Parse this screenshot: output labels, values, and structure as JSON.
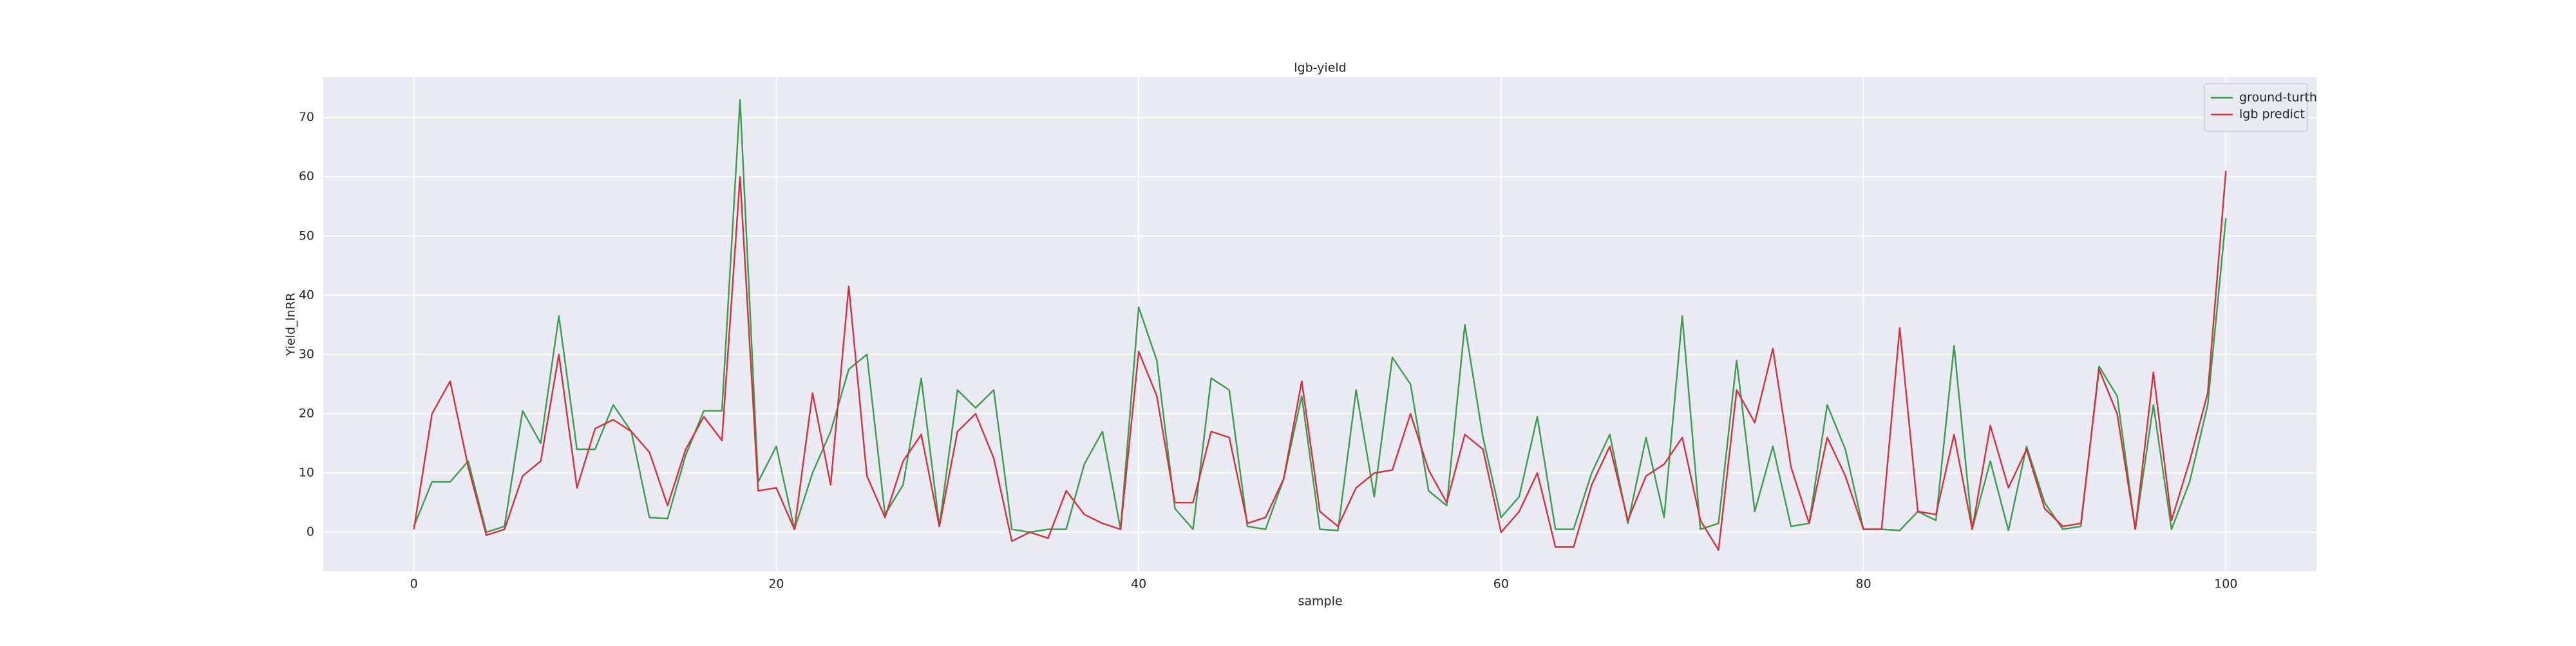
{
  "chart_data": {
    "type": "line",
    "title": "lgb-yield",
    "x_label": "sample",
    "y_label": "Yield_lnRR",
    "x": [
      0,
      1,
      2,
      3,
      4,
      5,
      6,
      7,
      8,
      9,
      10,
      11,
      12,
      13,
      14,
      15,
      16,
      17,
      18,
      19,
      20,
      21,
      22,
      23,
      24,
      25,
      26,
      27,
      28,
      29,
      30,
      31,
      32,
      33,
      34,
      35,
      36,
      37,
      38,
      39,
      40,
      41,
      42,
      43,
      44,
      45,
      46,
      47,
      48,
      49,
      50,
      51,
      52,
      53,
      54,
      55,
      56,
      57,
      58,
      59,
      60,
      61,
      62,
      63,
      64,
      65,
      66,
      67,
      68,
      69,
      70,
      71,
      72,
      73,
      74,
      75,
      76,
      77,
      78,
      79,
      80,
      81,
      82,
      83,
      84,
      85,
      86,
      87,
      88,
      89,
      90,
      91,
      92,
      93,
      94,
      95,
      96,
      97,
      98,
      99,
      100
    ],
    "series": [
      {
        "name": "ground-turth",
        "color": "#3b9b4f",
        "values": [
          1,
          8.5,
          8.5,
          12,
          0,
          1,
          20.5,
          15,
          36.5,
          14,
          14,
          21.5,
          17,
          2.5,
          2.3,
          13,
          20.5,
          20.5,
          73,
          8.5,
          14.5,
          0.5,
          10,
          17,
          27.5,
          30,
          3,
          8,
          26,
          1,
          24,
          21,
          24,
          0.5,
          0,
          0.5,
          0.5,
          11.5,
          17,
          0.5,
          38,
          29,
          4,
          0.5,
          26,
          24,
          1,
          0.5,
          9,
          23,
          0.5,
          0.3,
          24,
          6,
          29.5,
          25,
          7,
          4.5,
          35,
          16,
          2.5,
          6,
          19.5,
          0.5,
          0.5,
          10,
          16.5,
          1.5,
          16,
          2.5,
          36.5,
          0.5,
          1.5,
          29,
          3.5,
          14.5,
          1,
          1.5,
          21.5,
          14,
          0.5,
          0.5,
          0.3,
          3.5,
          2,
          31.5,
          0.5,
          12,
          0.3,
          14.5,
          5,
          0.5,
          1,
          28,
          23,
          0.5,
          21.5,
          0.5,
          8.5,
          21.5,
          53
        ]
      },
      {
        "name": "lgb predict",
        "color": "#d1323f",
        "values": [
          0.5,
          20,
          25.5,
          11,
          -0.5,
          0.5,
          9.5,
          12,
          30,
          7.5,
          17.5,
          19,
          17,
          13.5,
          4.5,
          14,
          19.5,
          15.5,
          60,
          7,
          7.5,
          0.5,
          23.5,
          8,
          41.5,
          9.5,
          2.5,
          12,
          16.5,
          1,
          17,
          20,
          12.5,
          -1.5,
          0,
          -1,
          7,
          3,
          1.5,
          0.5,
          30.5,
          23,
          5,
          5,
          17,
          16,
          1.5,
          2.5,
          9,
          25.5,
          3.5,
          1,
          7.5,
          10,
          10.5,
          20,
          10.5,
          5,
          16.5,
          14,
          0,
          3.5,
          10,
          -2.5,
          -2.5,
          8,
          14.5,
          2,
          9.5,
          11.5,
          16,
          2,
          -3,
          24,
          18.5,
          31,
          11,
          1.5,
          16,
          9.5,
          0.5,
          0.5,
          34.5,
          3.5,
          3,
          16.5,
          0.5,
          18,
          7.5,
          14,
          4,
          1,
          1.5,
          27.5,
          20,
          0.5,
          27,
          2,
          12,
          23.5,
          61
        ]
      }
    ],
    "xlim": [
      -5,
      105
    ],
    "ylim": [
      -6.6,
      76.8
    ],
    "xticks": [
      0,
      20,
      40,
      60,
      80,
      100
    ],
    "yticks": [
      0,
      10,
      20,
      30,
      40,
      50,
      60,
      70
    ],
    "grid": true,
    "legend": "upper right"
  }
}
